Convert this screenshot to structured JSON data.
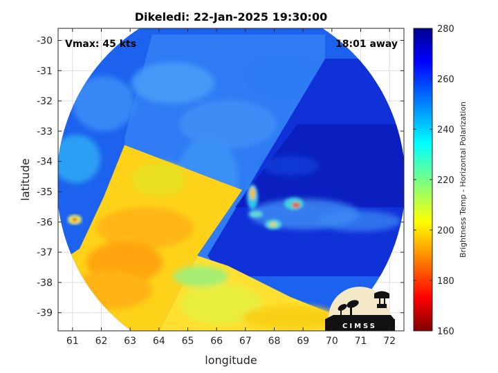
{
  "chart_data": {
    "type": "heatmap",
    "title": "Dikeledi: 22-Jan-2025 19:30:00",
    "xlabel": "longitude",
    "ylabel": "latitude",
    "xlim": [
      60.5,
      72.5
    ],
    "ylim": [
      -39.6,
      -29.6
    ],
    "xticks": [
      61,
      62,
      63,
      64,
      65,
      66,
      67,
      68,
      69,
      70,
      71,
      72
    ],
    "yticks": [
      -30,
      -31,
      -32,
      -33,
      -34,
      -35,
      -36,
      -37,
      -38,
      -39
    ],
    "grid": true,
    "annotations": {
      "vmax": "Vmax: 45 kts",
      "time_away": "18:01 away"
    },
    "colorbar": {
      "label": "Brightness Temp - Horizontal Polarization",
      "range": [
        160,
        280
      ],
      "ticks": [
        160,
        180,
        200,
        220,
        240,
        260,
        280
      ],
      "colormap": "jet"
    },
    "center": {
      "lon": 66.5,
      "lat": -34.6
    },
    "features": [
      {
        "name": "left warm strip",
        "lon": [
          60.6,
          64.2
        ],
        "lat": [
          -39.5,
          -33.8
        ],
        "value": 205
      },
      {
        "name": "central cold band",
        "lon": [
          63.3,
          67.6
        ],
        "lat": [
          -37.3,
          -30.0
        ],
        "value": 250
      },
      {
        "name": "right cold swath",
        "lon": [
          66.8,
          72.4
        ],
        "lat": [
          -37.8,
          -31.0
        ],
        "value": 262
      },
      {
        "name": "storm core",
        "lon": 68.8,
        "lat": -35.5,
        "value": 190
      },
      {
        "name": "small hot spot",
        "lon": 61.1,
        "lat": -35.9,
        "value": 195
      },
      {
        "name": "south warm band",
        "lon": [
          64.5,
          70.0
        ],
        "lat": [
          -39.5,
          -37.5
        ],
        "value": 210
      }
    ],
    "logo": "CIMSS"
  }
}
